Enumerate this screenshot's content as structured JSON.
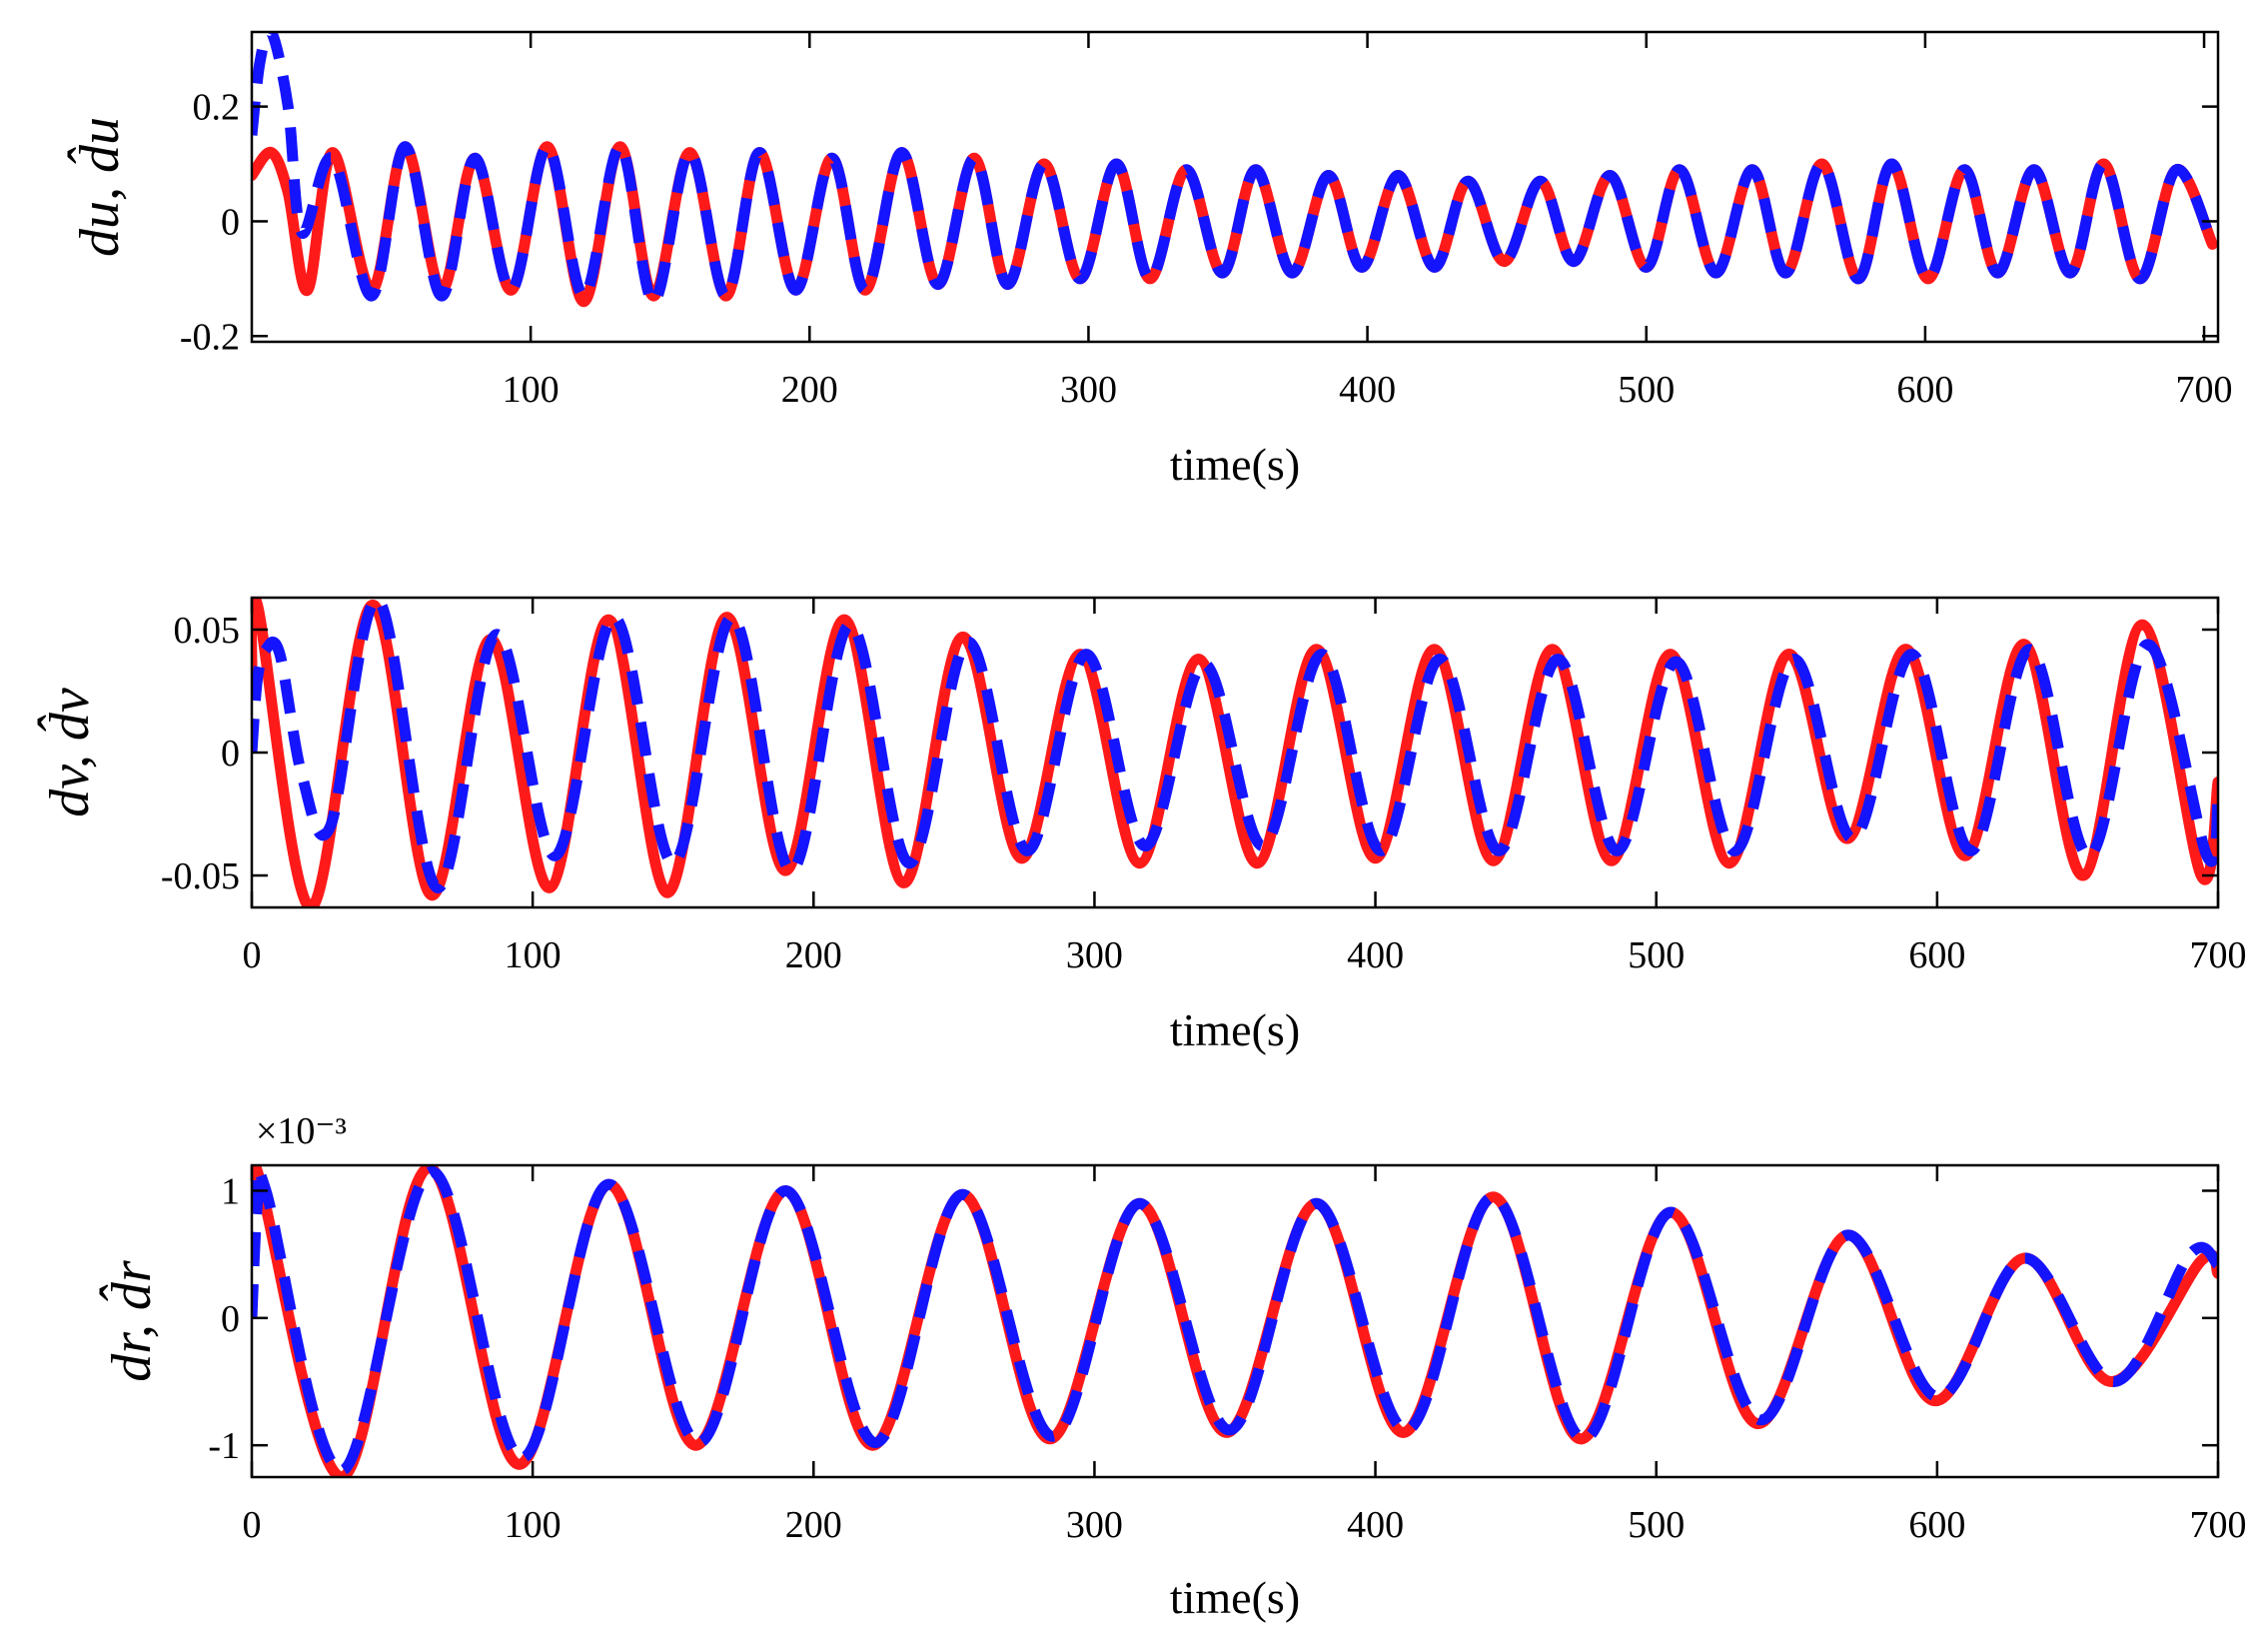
{
  "colors": {
    "estimate": "#ff1a1a",
    "actual": "#1414ff",
    "frame": "#000000"
  },
  "chart_data": [
    {
      "type": "line",
      "xlabel": "time(s)",
      "ylabel": "du, d̂u",
      "xlim": [
        0,
        705
      ],
      "ylim": [
        -0.21,
        0.33
      ],
      "xticks": [
        100,
        200,
        300,
        400,
        500,
        600,
        700
      ],
      "xtick_labels": [
        "100",
        "200",
        "300",
        "400",
        "500",
        "600",
        "700"
      ],
      "yticks": [
        -0.2,
        0,
        0.2
      ],
      "ytick_labels": [
        "-0.2",
        "0",
        "0.2"
      ],
      "exponent_label": "",
      "grid": false,
      "series": [
        {
          "style": "solid",
          "color": "#ff1a1a",
          "x": [
            0,
            7,
            13,
            20,
            29,
            43,
            55,
            68,
            80,
            93,
            106,
            119,
            132,
            144,
            157,
            170,
            182,
            195,
            208,
            220,
            233,
            246,
            259,
            271,
            284,
            297,
            310,
            322,
            335,
            348,
            360,
            373,
            386,
            398,
            411,
            424,
            436,
            449,
            462,
            474,
            487,
            500,
            512,
            525,
            538,
            550,
            563,
            576,
            588,
            601,
            614,
            626,
            639,
            652,
            664,
            677,
            690,
            703
          ],
          "y": [
            0.08,
            0.12,
            0.05,
            -0.12,
            0.12,
            -0.12,
            0.13,
            -0.12,
            0.11,
            -0.12,
            0.13,
            -0.14,
            0.13,
            -0.13,
            0.12,
            -0.13,
            0.12,
            -0.12,
            0.11,
            -0.12,
            0.12,
            -0.11,
            0.11,
            -0.11,
            0.1,
            -0.1,
            0.1,
            -0.1,
            0.09,
            -0.09,
            0.09,
            -0.09,
            0.08,
            -0.08,
            0.08,
            -0.08,
            0.07,
            -0.07,
            0.07,
            -0.07,
            0.08,
            -0.08,
            0.09,
            -0.09,
            0.09,
            -0.09,
            0.1,
            -0.1,
            0.1,
            -0.1,
            0.09,
            -0.09,
            0.09,
            -0.09,
            0.1,
            -0.1,
            0.09,
            -0.04
          ]
        },
        {
          "style": "dashed",
          "color": "#1414ff",
          "x": [
            0,
            3,
            7,
            13,
            18,
            29,
            43,
            55,
            68,
            80,
            93,
            106,
            119,
            132,
            144,
            157,
            170,
            182,
            195,
            208,
            220,
            233,
            246,
            259,
            271,
            284,
            297,
            310,
            322,
            335,
            348,
            360,
            373,
            386,
            398,
            411,
            424,
            436,
            449,
            462,
            474,
            487,
            500,
            512,
            525,
            538,
            550,
            563,
            576,
            588,
            601,
            614,
            626,
            639,
            652,
            664,
            677,
            690,
            703
          ],
          "y": [
            0.15,
            0.28,
            0.33,
            0.2,
            -0.02,
            0.11,
            -0.13,
            0.13,
            -0.13,
            0.11,
            -0.12,
            0.13,
            -0.13,
            0.13,
            -0.14,
            0.12,
            -0.13,
            0.12,
            -0.12,
            0.11,
            -0.12,
            0.12,
            -0.11,
            0.11,
            -0.11,
            0.1,
            -0.1,
            0.1,
            -0.1,
            0.09,
            -0.09,
            0.09,
            -0.09,
            0.08,
            -0.08,
            0.08,
            -0.08,
            0.07,
            -0.07,
            0.07,
            -0.07,
            0.08,
            -0.08,
            0.09,
            -0.09,
            0.09,
            -0.09,
            0.1,
            -0.1,
            0.1,
            -0.1,
            0.09,
            -0.09,
            0.09,
            -0.09,
            0.1,
            -0.1,
            0.09,
            -0.04
          ]
        }
      ]
    },
    {
      "type": "line",
      "xlabel": "time(s)",
      "ylabel": "dv, d̂v",
      "xlim": [
        0,
        700
      ],
      "ylim": [
        -0.063,
        0.063
      ],
      "xticks": [
        0,
        100,
        200,
        300,
        400,
        500,
        600,
        700
      ],
      "xtick_labels": [
        "0",
        "100",
        "200",
        "300",
        "400",
        "500",
        "600",
        "700"
      ],
      "yticks": [
        -0.05,
        0,
        0.05
      ],
      "ytick_labels": [
        "-0.05",
        "0",
        "0.05"
      ],
      "exponent_label": "",
      "grid": false,
      "series": [
        {
          "style": "solid",
          "color": "#ff1a1a",
          "x": [
            0,
            2,
            21,
            43,
            64,
            85,
            106,
            127,
            148,
            169,
            190,
            211,
            232,
            253,
            274,
            295,
            316,
            337,
            358,
            379,
            400,
            421,
            442,
            463,
            484,
            505,
            526,
            547,
            568,
            589,
            610,
            631,
            652,
            673,
            694,
            700
          ],
          "y": [
            0.03,
            0.06,
            -0.063,
            0.06,
            -0.058,
            0.046,
            -0.055,
            0.054,
            -0.057,
            0.055,
            -0.048,
            0.054,
            -0.053,
            0.047,
            -0.043,
            0.04,
            -0.045,
            0.038,
            -0.045,
            0.042,
            -0.043,
            0.042,
            -0.044,
            0.042,
            -0.044,
            0.04,
            -0.045,
            0.04,
            -0.035,
            0.042,
            -0.042,
            0.044,
            -0.05,
            0.052,
            -0.05,
            -0.012
          ]
        },
        {
          "style": "dashed",
          "color": "#1414ff",
          "x": [
            0,
            2,
            5,
            10,
            18,
            28,
            45,
            66,
            87,
            108,
            129,
            150,
            171,
            192,
            213,
            234,
            255,
            276,
            297,
            318,
            339,
            360,
            381,
            402,
            423,
            444,
            465,
            486,
            507,
            528,
            549,
            570,
            591,
            612,
            633,
            654,
            675,
            696,
            700
          ],
          "y": [
            0.0,
            0.03,
            0.042,
            0.04,
            -0.01,
            -0.03,
            0.062,
            -0.055,
            0.048,
            -0.042,
            0.055,
            -0.045,
            0.055,
            -0.048,
            0.052,
            -0.045,
            0.045,
            -0.04,
            0.04,
            -0.038,
            0.036,
            -0.038,
            0.04,
            -0.04,
            0.038,
            -0.04,
            0.038,
            -0.04,
            0.037,
            -0.04,
            0.038,
            -0.035,
            0.04,
            -0.04,
            0.042,
            -0.042,
            0.044,
            -0.042,
            -0.02
          ]
        }
      ]
    },
    {
      "type": "line",
      "xlabel": "time(s)",
      "ylabel": "dr, d̂r",
      "xlim": [
        0,
        700
      ],
      "ylim": [
        -1.25,
        1.2
      ],
      "xticks": [
        0,
        100,
        200,
        300,
        400,
        500,
        600,
        700
      ],
      "xtick_labels": [
        "0",
        "100",
        "200",
        "300",
        "400",
        "500",
        "600",
        "700"
      ],
      "yticks": [
        -1,
        0,
        1
      ],
      "ytick_labels": [
        "-1",
        "0",
        "1"
      ],
      "exponent_label": "×10⁻³",
      "grid": false,
      "series": [
        {
          "style": "solid",
          "color": "#ff1a1a",
          "x": [
            0,
            2,
            32,
            63,
            95,
            127,
            158,
            190,
            221,
            253,
            284,
            316,
            347,
            379,
            410,
            442,
            473,
            505,
            536,
            568,
            599,
            631,
            662,
            694,
            700
          ],
          "y": [
            1.0,
            1.15,
            -1.25,
            1.18,
            -1.15,
            1.05,
            -1.0,
            1.0,
            -1.0,
            0.97,
            -0.95,
            0.9,
            -0.9,
            0.9,
            -0.9,
            0.95,
            -0.95,
            0.83,
            -0.83,
            0.65,
            -0.65,
            0.47,
            -0.5,
            0.45,
            0.35
          ]
        },
        {
          "style": "dashed",
          "color": "#1414ff",
          "x": [
            0,
            2,
            5,
            32,
            64,
            96,
            127,
            159,
            190,
            222,
            253,
            285,
            316,
            348,
            379,
            411,
            442,
            474,
            505,
            537,
            568,
            600,
            631,
            663,
            690,
            700
          ],
          "y": [
            0.0,
            0.9,
            1.0,
            -1.2,
            1.15,
            -1.1,
            1.05,
            -0.98,
            1.0,
            -0.98,
            0.97,
            -0.93,
            0.9,
            -0.88,
            0.9,
            -0.88,
            0.95,
            -0.95,
            0.83,
            -0.8,
            0.65,
            -0.62,
            0.47,
            -0.5,
            0.5,
            0.42
          ]
        }
      ]
    }
  ]
}
